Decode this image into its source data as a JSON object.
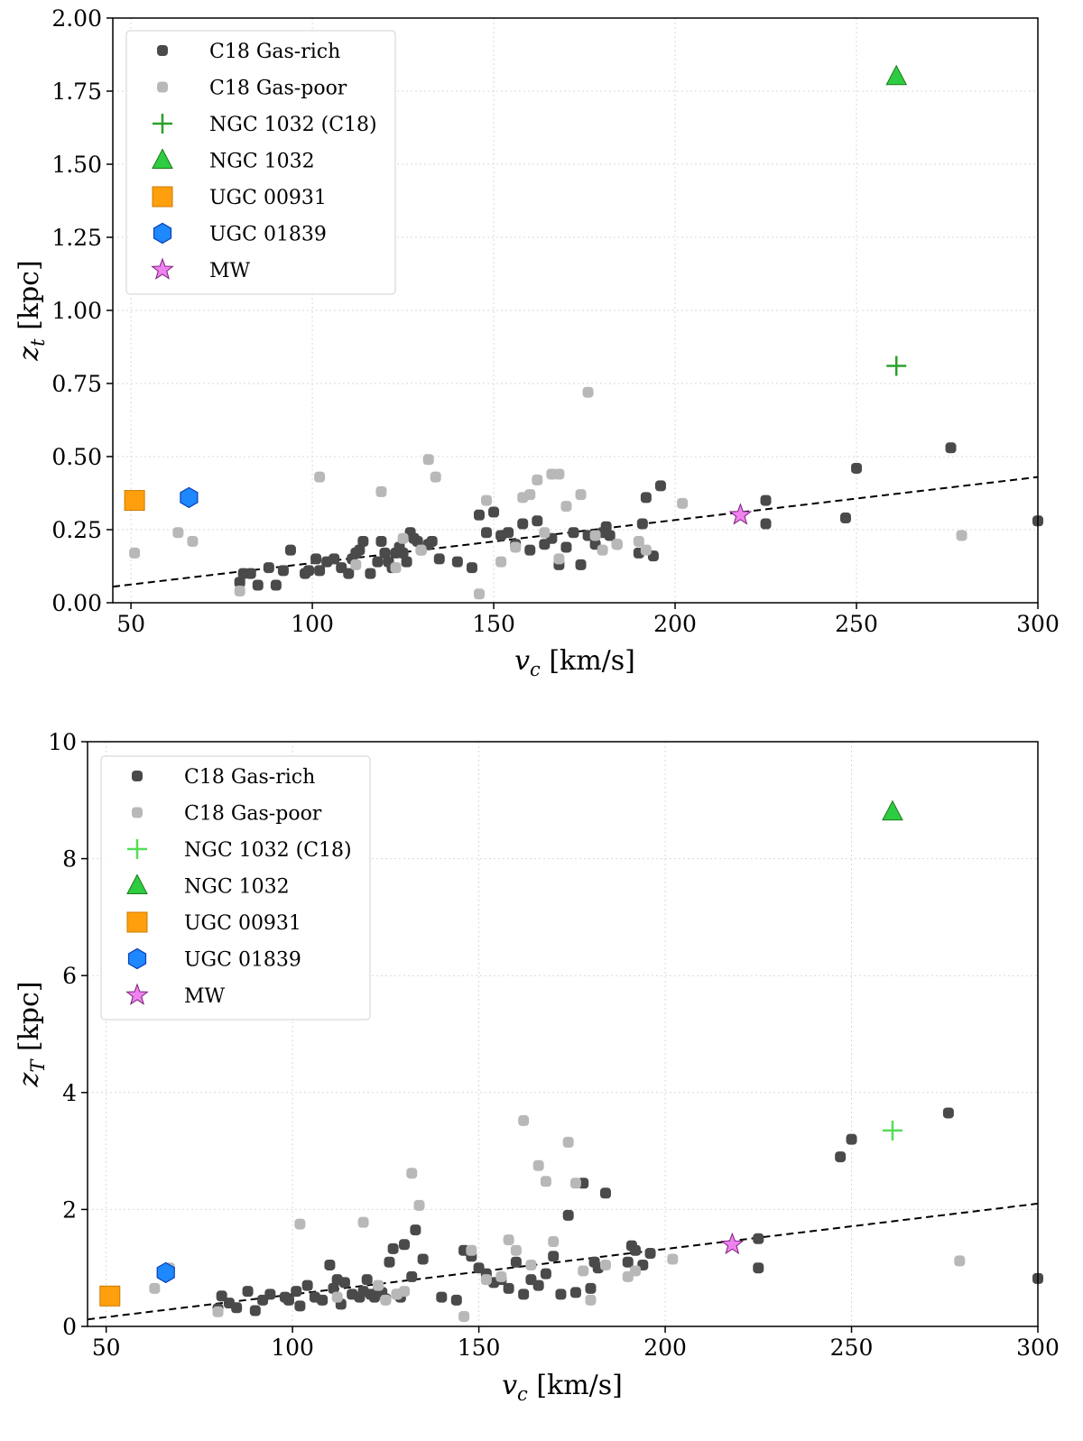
{
  "chart_data": [
    {
      "type": "scatter",
      "title": "",
      "xlabel": "v_c [km/s]",
      "ylabel": "z_t [kpc]",
      "xlim": [
        45,
        300
      ],
      "ylim": [
        0,
        2.0
      ],
      "xticks": [
        50,
        100,
        150,
        200,
        250,
        300
      ],
      "xtick_labels": [
        "50",
        "100",
        "150",
        "200",
        "250",
        "300"
      ],
      "yticks": [
        0,
        0.25,
        0.5,
        0.75,
        1.0,
        1.25,
        1.5,
        1.75,
        2.0
      ],
      "ytick_labels": [
        "0.00",
        "0.25",
        "0.50",
        "0.75",
        "1.00",
        "1.25",
        "1.50",
        "1.75",
        "2.00"
      ],
      "grid": true,
      "legend_position": "top-left",
      "fit_line": {
        "x": [
          45,
          300
        ],
        "y": [
          0.055,
          0.43
        ],
        "style": "dashed",
        "color": "#000000"
      },
      "series": [
        {
          "name": "C18 Gas-rich",
          "marker": "circle",
          "color": "#4a4a4a",
          "x": [
            80,
            81,
            83,
            85,
            88,
            90,
            92,
            94,
            98,
            99,
            101,
            102,
            104,
            106,
            108,
            110,
            111,
            112,
            113,
            114,
            116,
            118,
            119,
            120,
            121,
            122,
            123,
            124,
            125,
            126,
            127,
            128,
            129,
            130,
            132,
            133,
            135,
            140,
            144,
            146,
            148,
            150,
            152,
            154,
            156,
            158,
            160,
            162,
            164,
            166,
            168,
            170,
            172,
            174,
            176,
            178,
            180,
            181,
            182,
            184,
            190,
            191,
            192,
            194,
            196,
            225,
            225,
            247,
            250,
            276,
            300
          ],
          "y": [
            0.07,
            0.1,
            0.1,
            0.06,
            0.12,
            0.06,
            0.11,
            0.18,
            0.1,
            0.11,
            0.15,
            0.11,
            0.14,
            0.15,
            0.12,
            0.1,
            0.15,
            0.17,
            0.18,
            0.21,
            0.1,
            0.14,
            0.21,
            0.17,
            0.14,
            0.12,
            0.17,
            0.19,
            0.17,
            0.14,
            0.24,
            0.22,
            0.21,
            0.18,
            0.2,
            0.21,
            0.15,
            0.14,
            0.12,
            0.3,
            0.24,
            0.31,
            0.23,
            0.24,
            0.2,
            0.27,
            0.18,
            0.28,
            0.2,
            0.22,
            0.13,
            0.19,
            0.24,
            0.13,
            0.23,
            0.2,
            0.24,
            0.26,
            0.23,
            0.2,
            0.17,
            0.27,
            0.36,
            0.16,
            0.4,
            0.35,
            0.27,
            0.29,
            0.46,
            0.53,
            0.28
          ]
        },
        {
          "name": "C18 Gas-poor",
          "marker": "circle",
          "color": "#b8b8b8",
          "x": [
            51,
            63,
            67,
            80,
            102,
            112,
            119,
            123,
            125,
            130,
            132,
            134,
            146,
            148,
            152,
            156,
            158,
            160,
            162,
            164,
            166,
            168,
            168,
            170,
            174,
            176,
            178,
            180,
            184,
            190,
            192,
            202,
            279
          ],
          "y": [
            0.17,
            0.24,
            0.21,
            0.04,
            0.43,
            0.13,
            0.38,
            0.12,
            0.22,
            0.18,
            0.49,
            0.43,
            0.03,
            0.35,
            0.14,
            0.19,
            0.36,
            0.37,
            0.42,
            0.24,
            0.44,
            0.44,
            0.15,
            0.33,
            0.37,
            0.72,
            0.23,
            0.18,
            0.2,
            0.21,
            0.18,
            0.34,
            0.23
          ]
        },
        {
          "name": "NGC 1032 (C18)",
          "marker": "plus",
          "color": "#2ca02c",
          "x": [
            261
          ],
          "y": [
            0.81
          ]
        },
        {
          "name": "NGC 1032",
          "marker": "triangle",
          "color": "#2ecc40",
          "x": [
            261
          ],
          "y": [
            1.8
          ]
        },
        {
          "name": "UGC 00931",
          "marker": "square",
          "color": "#ff9f0e",
          "x": [
            51
          ],
          "y": [
            0.35
          ]
        },
        {
          "name": "UGC 01839",
          "marker": "hexagon",
          "color": "#1e88ff",
          "x": [
            66
          ],
          "y": [
            0.36
          ]
        },
        {
          "name": "MW",
          "marker": "star",
          "color": "#ee82ee",
          "x": [
            218
          ],
          "y": [
            0.3
          ]
        }
      ]
    },
    {
      "type": "scatter",
      "title": "",
      "xlabel": "v_c [km/s]",
      "ylabel": "z_T [kpc]",
      "xlim": [
        45,
        300
      ],
      "ylim": [
        0,
        10
      ],
      "xticks": [
        50,
        100,
        150,
        200,
        250,
        300
      ],
      "xtick_labels": [
        "50",
        "100",
        "150",
        "200",
        "250",
        "300"
      ],
      "yticks": [
        0,
        2,
        4,
        6,
        8,
        10
      ],
      "ytick_labels": [
        "0",
        "2",
        "4",
        "6",
        "8",
        "10"
      ],
      "grid": true,
      "legend_position": "top-left",
      "fit_line": {
        "x": [
          45,
          300
        ],
        "y": [
          0.12,
          2.1
        ],
        "style": "dashed",
        "color": "#000000"
      },
      "series": [
        {
          "name": "C18 Gas-rich",
          "marker": "circle",
          "color": "#4a4a4a",
          "x": [
            80,
            81,
            83,
            85,
            88,
            90,
            92,
            94,
            98,
            99,
            101,
            102,
            104,
            106,
            108,
            110,
            111,
            112,
            113,
            114,
            116,
            118,
            119,
            120,
            121,
            122,
            123,
            124,
            125,
            126,
            127,
            128,
            129,
            130,
            132,
            133,
            135,
            140,
            144,
            146,
            148,
            150,
            152,
            154,
            156,
            158,
            160,
            162,
            164,
            166,
            168,
            170,
            172,
            174,
            176,
            178,
            180,
            181,
            182,
            184,
            190,
            191,
            192,
            194,
            196,
            225,
            225,
            247,
            250,
            276,
            300
          ],
          "y": [
            0.3,
            0.52,
            0.4,
            0.32,
            0.6,
            0.27,
            0.45,
            0.55,
            0.5,
            0.45,
            0.6,
            0.35,
            0.7,
            0.5,
            0.45,
            1.05,
            0.65,
            0.8,
            0.38,
            0.75,
            0.55,
            0.5,
            0.6,
            0.8,
            0.55,
            0.5,
            0.62,
            0.58,
            0.47,
            1.1,
            1.33,
            0.55,
            0.5,
            1.4,
            0.85,
            1.65,
            1.15,
            0.5,
            0.45,
            1.3,
            1.2,
            1.0,
            0.9,
            0.75,
            0.8,
            0.65,
            1.1,
            0.55,
            0.8,
            0.7,
            0.9,
            1.2,
            0.55,
            1.9,
            0.58,
            2.45,
            0.65,
            1.1,
            1.0,
            2.28,
            1.1,
            1.38,
            1.3,
            1.05,
            1.25,
            1.5,
            1.0,
            2.9,
            3.2,
            3.65,
            0.82
          ]
        },
        {
          "name": "C18 Gas-poor",
          "marker": "circle",
          "color": "#b8b8b8",
          "x": [
            63,
            67,
            80,
            102,
            112,
            119,
            123,
            125,
            128,
            130,
            132,
            134,
            146,
            148,
            152,
            156,
            158,
            160,
            162,
            164,
            166,
            168,
            170,
            174,
            176,
            178,
            180,
            184,
            190,
            192,
            202,
            279
          ],
          "y": [
            0.65,
            1.0,
            0.25,
            1.75,
            0.5,
            1.78,
            0.7,
            0.45,
            0.55,
            0.6,
            2.62,
            2.07,
            0.17,
            1.3,
            0.8,
            0.85,
            1.48,
            1.3,
            3.52,
            1.05,
            2.75,
            2.48,
            1.45,
            3.15,
            2.45,
            0.95,
            0.45,
            1.05,
            0.85,
            0.95,
            1.15,
            1.12
          ]
        },
        {
          "name": "NGC 1032 (C18)",
          "marker": "plus",
          "color": "#55dd55",
          "x": [
            261
          ],
          "y": [
            3.35
          ]
        },
        {
          "name": "NGC 1032",
          "marker": "triangle",
          "color": "#2ecc40",
          "x": [
            261
          ],
          "y": [
            8.8
          ]
        },
        {
          "name": "UGC 00931",
          "marker": "square",
          "color": "#ff9f0e",
          "x": [
            51
          ],
          "y": [
            0.52
          ]
        },
        {
          "name": "UGC 01839",
          "marker": "hexagon",
          "color": "#1e88ff",
          "x": [
            66
          ],
          "y": [
            0.92
          ]
        },
        {
          "name": "MW",
          "marker": "star",
          "color": "#ee82ee",
          "x": [
            218
          ],
          "y": [
            1.4
          ]
        }
      ]
    }
  ]
}
